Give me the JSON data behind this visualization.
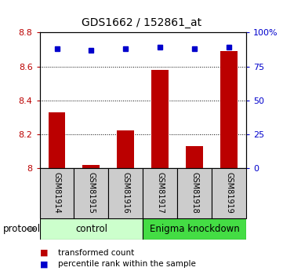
{
  "title": "GDS1662 / 152861_at",
  "samples": [
    "GSM81914",
    "GSM81915",
    "GSM81916",
    "GSM81917",
    "GSM81918",
    "GSM81919"
  ],
  "red_values": [
    8.33,
    8.02,
    8.22,
    8.58,
    8.13,
    8.69
  ],
  "blue_values": [
    88,
    87,
    88,
    89,
    88,
    89
  ],
  "ylim_left": [
    8.0,
    8.8
  ],
  "ylim_right": [
    0,
    100
  ],
  "yticks_left": [
    8.0,
    8.2,
    8.4,
    8.6,
    8.8
  ],
  "yticks_right": [
    0,
    25,
    50,
    75,
    100
  ],
  "ytick_labels_left": [
    "8",
    "8.2",
    "8.4",
    "8.6",
    "8.8"
  ],
  "ytick_labels_right": [
    "0",
    "25",
    "50",
    "75",
    "100%"
  ],
  "grid_values": [
    8.2,
    8.4,
    8.6
  ],
  "group1_label": "control",
  "group2_label": "Enigma knockdown",
  "protocol_label": "protocol",
  "legend_red": "transformed count",
  "legend_blue": "percentile rank within the sample",
  "red_color": "#bb0000",
  "blue_color": "#0000cc",
  "bar_width": 0.5,
  "group1_color": "#ccffcc",
  "group2_color": "#44dd44",
  "sample_box_color": "#cccccc",
  "background_color": "#ffffff"
}
